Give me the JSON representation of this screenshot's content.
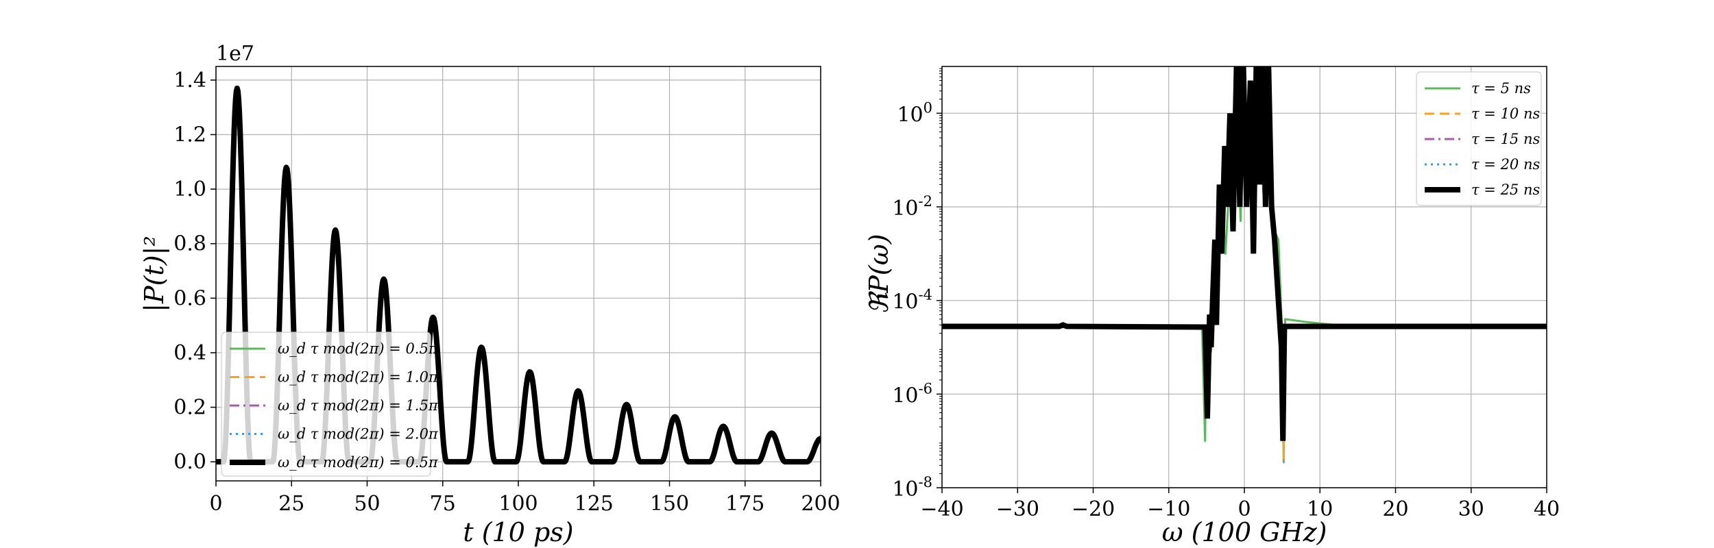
{
  "chart_data": [
    {
      "type": "line",
      "xlabel": "t (10 ps)",
      "ylabel": "|P(t)|²",
      "y_offset_text": "1e7",
      "xlim": [
        0,
        200
      ],
      "ylim": [
        -0.07,
        1.45
      ],
      "xticks": [
        0,
        25,
        50,
        75,
        100,
        125,
        150,
        175,
        200
      ],
      "xtick_labels": [
        "0",
        "25",
        "50",
        "75",
        "100",
        "125",
        "150",
        "175",
        "200"
      ],
      "yticks": [
        0.0,
        0.2,
        0.4,
        0.6,
        0.8,
        1.0,
        1.2,
        1.4
      ],
      "ytick_labels": [
        "0.0",
        "0.2",
        "0.4",
        "0.6",
        "0.8",
        "1.0",
        "1.2",
        "1.4"
      ],
      "grid": true,
      "legend_position": "lower-left",
      "peaks": [
        {
          "x": 7,
          "y": 1.37
        },
        {
          "x": 23.3,
          "y": 1.08
        },
        {
          "x": 39.5,
          "y": 0.85
        },
        {
          "x": 55.5,
          "y": 0.67
        },
        {
          "x": 71.8,
          "y": 0.53
        },
        {
          "x": 87.8,
          "y": 0.42
        },
        {
          "x": 103.8,
          "y": 0.33
        },
        {
          "x": 119.8,
          "y": 0.26
        },
        {
          "x": 135.8,
          "y": 0.21
        },
        {
          "x": 151.8,
          "y": 0.165
        },
        {
          "x": 167.8,
          "y": 0.13
        },
        {
          "x": 183.8,
          "y": 0.105
        },
        {
          "x": 200,
          "y": 0.085
        }
      ],
      "peak_half_width": 4.5,
      "series": [
        {
          "name": "ω_d τ mod(2π) = 0.5π",
          "color": "#5cb85c",
          "dash": "solid",
          "width": 3
        },
        {
          "name": "ω_d τ mod(2π) = 1.0π",
          "color": "#ff9f1a",
          "dash": "dashed",
          "width": 3
        },
        {
          "name": "ω_d τ mod(2π) = 1.5π",
          "color": "#a65ca8",
          "dash": "dashdot",
          "width": 3
        },
        {
          "name": "ω_d τ mod(2π) = 2.0π",
          "color": "#3a9bd5",
          "dash": "dotted",
          "width": 3
        },
        {
          "name": "ω_d τ mod(2π) = 0.5π",
          "color": "#000000",
          "dash": "solid",
          "width": 8
        }
      ]
    },
    {
      "type": "line",
      "xlabel": "ω (100 GHz)",
      "ylabel": "ℜP(ω)",
      "yscale": "log",
      "xlim": [
        -40,
        40
      ],
      "ylim_exponent": [
        -8,
        1
      ],
      "xticks": [
        -40,
        -30,
        -20,
        -10,
        0,
        10,
        20,
        30,
        40
      ],
      "xtick_labels": [
        "−40",
        "−30",
        "−20",
        "−10",
        "0",
        "10",
        "20",
        "30",
        "40"
      ],
      "yticks_exponent": [
        -8,
        -6,
        -4,
        -2,
        0
      ],
      "ytick_base": "10",
      "ytick_exponent_labels": [
        "-8",
        "-6",
        "-4",
        "-2",
        "0"
      ],
      "grid": true,
      "legend_position": "upper-right",
      "baseline_value": 2.8e-05,
      "green_trace": [
        [
          -40,
          2.8e-05
        ],
        [
          -24,
          2.8e-05
        ],
        [
          -5.6,
          2.7e-05
        ],
        [
          -5.2,
          1e-07
        ],
        [
          -5.0,
          2e-05
        ],
        [
          -4.6,
          5e-05
        ],
        [
          -4.4,
          8e-06
        ],
        [
          -4.0,
          0.0002
        ],
        [
          -3.5,
          0.001
        ],
        [
          -3.0,
          0.02
        ],
        [
          -2.5,
          0.001
        ],
        [
          -2.0,
          0.03
        ],
        [
          -1.5,
          0.1
        ],
        [
          -1.0,
          1
        ],
        [
          -0.5,
          0.005
        ],
        [
          0,
          10
        ],
        [
          0.5,
          0.1
        ],
        [
          1,
          3
        ],
        [
          1.5,
          0.02
        ],
        [
          2,
          5
        ],
        [
          2.5,
          0.02
        ],
        [
          3,
          8
        ],
        [
          3.5,
          0.01
        ],
        [
          4,
          0.003
        ],
        [
          4.5,
          0.002
        ],
        [
          5,
          2e-05
        ],
        [
          5.2,
          3.5e-08
        ],
        [
          5.4,
          4e-05
        ],
        [
          8,
          3.5e-05
        ],
        [
          12,
          3e-05
        ],
        [
          40,
          2.8e-05
        ]
      ],
      "black_trace": [
        [
          -40,
          2.8e-05
        ],
        [
          -24.5,
          2.8e-05
        ],
        [
          -24.0,
          3e-05
        ],
        [
          -23.5,
          2.8e-05
        ],
        [
          -5.2,
          2.7e-05
        ],
        [
          -4.9,
          3e-07
        ],
        [
          -4.6,
          5e-05
        ],
        [
          -4.4,
          1e-05
        ],
        [
          -4.2,
          0.0001
        ],
        [
          -3.9,
          0.002
        ],
        [
          -3.7,
          3e-05
        ],
        [
          -3.3,
          0.03
        ],
        [
          -3.0,
          0.001
        ],
        [
          -2.6,
          0.2
        ],
        [
          -2.3,
          0.01
        ],
        [
          -1.9,
          1
        ],
        [
          -1.5,
          0.003
        ],
        [
          -1.0,
          20
        ],
        [
          -0.6,
          0.01
        ],
        [
          -0.2,
          30
        ],
        [
          0.3,
          0.01
        ],
        [
          0.8,
          5
        ],
        [
          1.2,
          0.001
        ],
        [
          1.6,
          20
        ],
        [
          2.0,
          0.03
        ],
        [
          2.4,
          30
        ],
        [
          2.8,
          0.01
        ],
        [
          3.2,
          10
        ],
        [
          3.6,
          0.01
        ],
        [
          4.0,
          0.002
        ],
        [
          4.5,
          0.0001
        ],
        [
          4.9,
          1e-05
        ],
        [
          5.1,
          1e-07
        ],
        [
          5.3,
          2.8e-05
        ],
        [
          40,
          2.8e-05
        ]
      ],
      "orange_spike": {
        "x": 5.2,
        "y": 4e-08
      },
      "series": [
        {
          "name": "τ = 5 ns",
          "color": "#5cb85c",
          "dash": "solid",
          "width": 3
        },
        {
          "name": "τ = 10 ns",
          "color": "#ff9f1a",
          "dash": "dashed",
          "width": 3
        },
        {
          "name": "τ = 15 ns",
          "color": "#a65ca8",
          "dash": "dashdot",
          "width": 3
        },
        {
          "name": "τ = 20 ns",
          "color": "#3a9bd5",
          "dash": "dotted",
          "width": 3
        },
        {
          "name": "τ = 25 ns",
          "color": "#000000",
          "dash": "solid",
          "width": 8
        }
      ]
    }
  ]
}
